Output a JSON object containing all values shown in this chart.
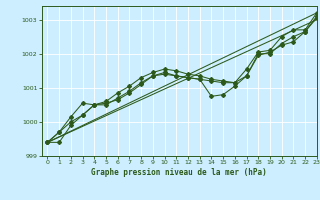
{
  "title": "Graphe pression niveau de la mer (hPa)",
  "background_color": "#cceeff",
  "grid_color": "#aaddcc",
  "line_color": "#2d5a1b",
  "xlim": [
    -0.5,
    23
  ],
  "ylim": [
    999.0,
    1003.4
  ],
  "yticks": [
    999,
    1000,
    1001,
    1002,
    1003
  ],
  "xticks": [
    0,
    1,
    2,
    3,
    4,
    5,
    6,
    7,
    8,
    9,
    10,
    11,
    12,
    13,
    14,
    15,
    16,
    17,
    18,
    19,
    20,
    21,
    22,
    23
  ],
  "series_main": [
    999.4,
    999.4,
    999.9,
    1000.2,
    1000.5,
    1000.5,
    1000.7,
    1000.9,
    1001.15,
    1001.35,
    1001.45,
    1001.35,
    1001.3,
    1001.25,
    1001.2,
    1001.15,
    1001.15,
    1001.35,
    1002.0,
    1002.0,
    1002.3,
    1002.5,
    1002.65,
    1003.05
  ],
  "series_high": [
    999.4,
    999.7,
    1000.15,
    1000.55,
    1000.5,
    1000.6,
    1000.85,
    1001.05,
    1001.3,
    1001.45,
    1001.55,
    1001.5,
    1001.4,
    1001.35,
    1001.25,
    1001.2,
    1001.15,
    1001.55,
    1002.05,
    1002.1,
    1002.5,
    1002.7,
    1002.7,
    1003.2
  ],
  "series_low": [
    999.4,
    999.7,
    1000.0,
    1000.2,
    1000.5,
    1000.55,
    1000.65,
    1000.85,
    1001.1,
    1001.35,
    1001.4,
    1001.35,
    1001.3,
    1001.25,
    1000.75,
    1000.8,
    1001.05,
    1001.35,
    1001.95,
    1002.05,
    1002.25,
    1002.35,
    1002.65,
    1003.1
  ],
  "series_dip": [
    999.4,
    999.65,
    999.9,
    1000.2,
    1000.5,
    1000.55,
    1000.65,
    1000.85,
    1001.1,
    1001.3,
    1001.4,
    1001.35,
    1001.25,
    1001.2,
    1000.75,
    1000.75,
    1001.0,
    1001.35,
    1001.95,
    1002.05,
    1002.2,
    1002.35,
    1002.65,
    1003.1
  ]
}
